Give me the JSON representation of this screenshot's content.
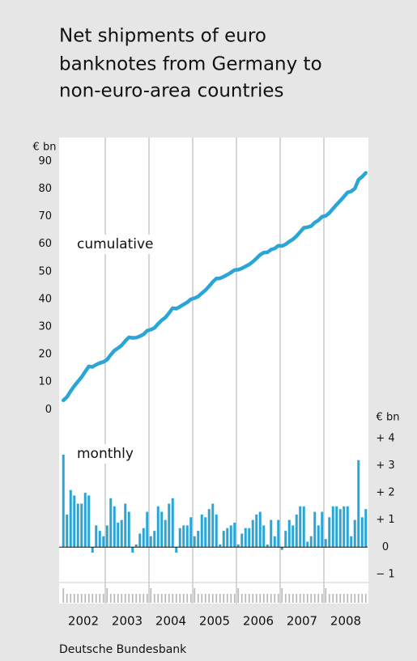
{
  "chart_data": [
    {
      "type": "line",
      "title": "Net shipments of euro banknotes from Germany to non-euro-area countries",
      "title_lines": [
        "Net shipments of euro",
        "banknotes from Germany to",
        "non-euro-area countries"
      ],
      "y_label": "€ bn",
      "annotation": "cumulative",
      "color": "#2aa6d6",
      "ylim": [
        -4,
        98
      ],
      "yticks": [
        0,
        10,
        20,
        30,
        40,
        50,
        60,
        70,
        80,
        90
      ],
      "values": [
        3.4,
        4.6,
        6.7,
        8.6,
        10.2,
        11.8,
        13.8,
        15.7,
        15.5,
        16.3,
        16.9,
        17.3,
        18.1,
        19.9,
        21.4,
        22.3,
        23.3,
        24.9,
        26.2,
        26.0,
        26.1,
        26.6,
        27.3,
        28.6,
        29.0,
        29.6,
        31.1,
        32.4,
        33.4,
        35.0,
        36.8,
        36.6,
        37.3,
        38.1,
        38.9,
        40.0,
        40.4,
        41.0,
        42.2,
        43.3,
        44.7,
        46.3,
        47.5,
        47.6,
        48.2,
        48.9,
        49.7,
        50.6,
        50.7,
        51.2,
        51.9,
        52.6,
        53.6,
        54.8,
        56.1,
        56.9,
        57.0,
        58.0,
        58.4,
        59.4,
        59.3,
        59.9,
        60.9,
        61.7,
        62.9,
        64.4,
        65.9,
        66.1,
        66.5,
        67.8,
        68.6,
        69.9,
        70.2,
        71.3,
        72.8,
        74.3,
        75.7,
        77.2,
        78.7,
        79.1,
        80.1,
        83.3,
        84.4,
        85.8
      ]
    },
    {
      "type": "bar",
      "y_label": "€ bn",
      "annotation": "monthly",
      "color": "#2aa6d6",
      "ylim": [
        -1.3,
        4.5
      ],
      "yticks": [
        {
          "value": 4,
          "label": "+ 4"
        },
        {
          "value": 3,
          "label": "+ 3"
        },
        {
          "value": 2,
          "label": "+ 2"
        },
        {
          "value": 1,
          "label": "+ 1"
        },
        0,
        {
          "value": -1,
          "label": "− 1"
        }
      ],
      "years": [
        "2002",
        "2003",
        "2004",
        "2005",
        "2006",
        "2007",
        "2008"
      ],
      "values": [
        3.4,
        1.2,
        2.1,
        1.9,
        1.6,
        1.6,
        2.0,
        1.9,
        -0.2,
        0.8,
        0.6,
        0.4,
        0.8,
        1.8,
        1.5,
        0.9,
        1.0,
        1.6,
        1.3,
        -0.2,
        0.1,
        0.5,
        0.7,
        1.3,
        0.4,
        0.6,
        1.5,
        1.3,
        1.0,
        1.6,
        1.8,
        -0.2,
        0.7,
        0.8,
        0.8,
        1.1,
        0.4,
        0.6,
        1.2,
        1.1,
        1.4,
        1.6,
        1.2,
        0.1,
        0.6,
        0.7,
        0.8,
        0.9,
        0.1,
        0.5,
        0.7,
        0.7,
        1.0,
        1.2,
        1.3,
        0.8,
        0.1,
        1.0,
        0.4,
        1.0,
        -0.1,
        0.6,
        1.0,
        0.8,
        1.2,
        1.5,
        1.5,
        0.2,
        0.4,
        1.3,
        0.8,
        1.3,
        0.3,
        1.1,
        1.5,
        1.5,
        1.4,
        1.5,
        1.5,
        0.4,
        1.0,
        3.2,
        1.1,
        1.4
      ]
    }
  ],
  "source": "Deutsche Bundesbank"
}
